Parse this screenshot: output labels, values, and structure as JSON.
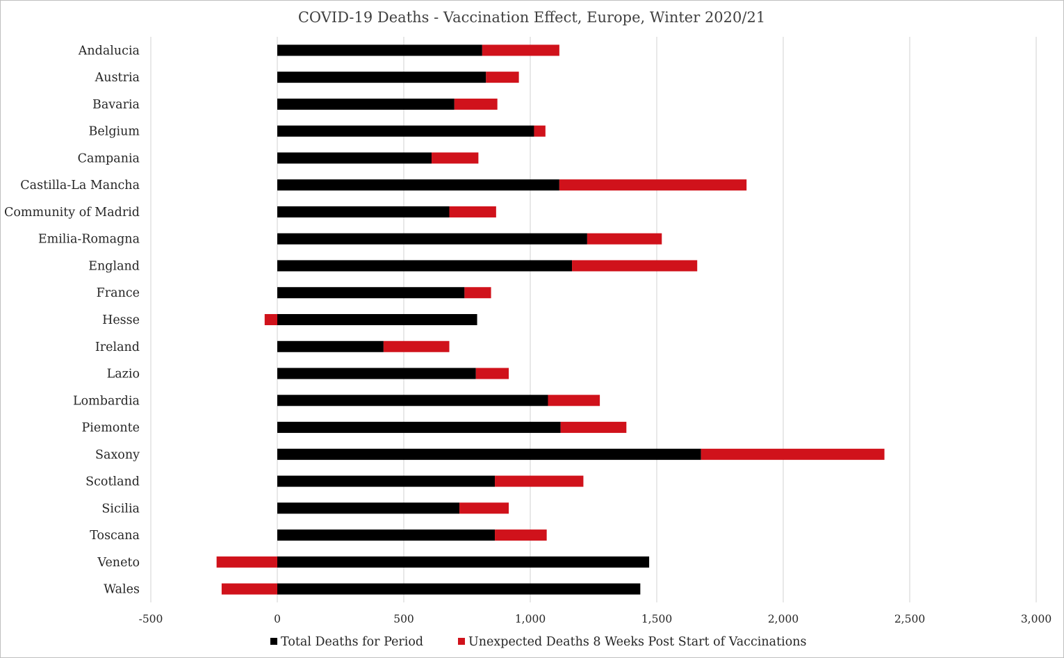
{
  "chart_data": {
    "type": "bar",
    "orientation": "horizontal",
    "stacked": true,
    "title": "COVID-19 Deaths - Vaccination Effect, Europe, Winter 2020/21",
    "xlabel": "",
    "ylabel": "",
    "xlim": [
      -500,
      3000
    ],
    "xticks": [
      -500,
      0,
      500,
      1000,
      1500,
      2000,
      2500,
      3000
    ],
    "xtick_labels": [
      "-500",
      "0",
      "500",
      "1,000",
      "1,500",
      "2,000",
      "2,500",
      "3,000"
    ],
    "grid": true,
    "legend_position": "bottom",
    "categories": [
      "Andalucia",
      "Austria",
      "Bavaria",
      "Belgium",
      "Campania",
      "Castilla-La Mancha",
      "Community of Madrid",
      "Emilia-Romagna",
      "England",
      "France",
      "Hesse",
      "Ireland",
      "Lazio",
      "Lombardia",
      "Piemonte",
      "Saxony",
      "Scotland",
      "Sicilia",
      "Toscana",
      "Veneto",
      "Wales"
    ],
    "series": [
      {
        "name": "Total Deaths for Period",
        "color": "#000000",
        "values": [
          810,
          825,
          700,
          1015,
          610,
          1115,
          680,
          1225,
          1165,
          740,
          790,
          420,
          785,
          1070,
          1120,
          1675,
          860,
          720,
          860,
          1470,
          1435
        ]
      },
      {
        "name": "Unexpected Deaths 8 Weeks Post Start of Vaccinations",
        "color": "#d0121b",
        "values": [
          305,
          130,
          170,
          45,
          185,
          740,
          185,
          295,
          495,
          105,
          -50,
          260,
          130,
          205,
          260,
          725,
          350,
          195,
          205,
          -240,
          -220
        ]
      }
    ]
  }
}
